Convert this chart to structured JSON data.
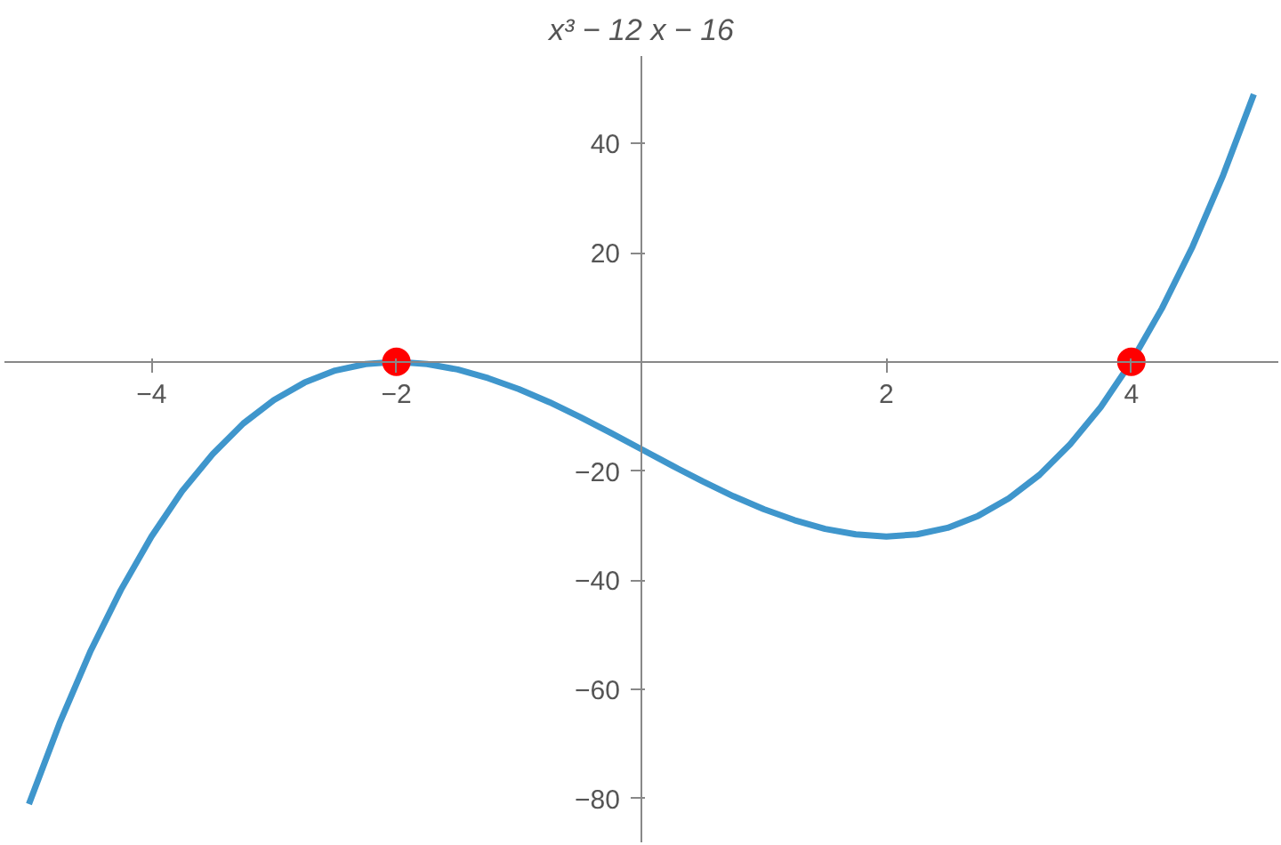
{
  "chart_data": {
    "type": "line",
    "ylabel": "x³ − 12 x − 16",
    "xlim": [
      -5.2,
      5.2
    ],
    "ylim": [
      -88,
      56
    ],
    "xticks": [
      {
        "value": -4,
        "label": "−4"
      },
      {
        "value": -2,
        "label": "−2"
      },
      2,
      4
    ],
    "yticks": [
      {
        "value": -80,
        "label": "−80"
      },
      {
        "value": -60,
        "label": "−60"
      },
      {
        "value": -40,
        "label": "−40"
      },
      {
        "value": -20,
        "label": "−20"
      },
      20,
      40
    ],
    "grid": false,
    "series": [
      {
        "color": "#3f96cc",
        "marker": "none",
        "x": [
          -5,
          -4.75,
          -4.5,
          -4.25,
          -4,
          -3.75,
          -3.5,
          -3.25,
          -3,
          -2.75,
          -2.5,
          -2.25,
          -2,
          -1.75,
          -1.5,
          -1.25,
          -1,
          -0.75,
          -0.5,
          -0.25,
          0,
          0.25,
          0.5,
          0.75,
          1,
          1.25,
          1.5,
          1.75,
          2,
          2.25,
          2.5,
          2.75,
          3,
          3.25,
          3.5,
          3.75,
          4,
          4.25,
          4.5,
          4.75,
          5
        ],
        "values": [
          -81,
          -66.2,
          -53.1,
          -41.8,
          -32,
          -23.7,
          -16.9,
          -11.3,
          -7,
          -3.8,
          -1.6,
          -0.4,
          0,
          -0.4,
          -1.4,
          -3,
          -5,
          -7.4,
          -10.1,
          -13,
          -16,
          -19,
          -21.9,
          -24.6,
          -27,
          -29,
          -30.6,
          -31.6,
          -32,
          -31.6,
          -30.4,
          -28.2,
          -25,
          -20.7,
          -15.1,
          -8.3,
          0,
          9.8,
          21.1,
          34.2,
          49
        ]
      },
      {
        "type": "scatter",
        "color": "#ff0000",
        "marker": "circle",
        "x": [
          -2,
          4
        ],
        "values": [
          0,
          0
        ]
      }
    ]
  }
}
